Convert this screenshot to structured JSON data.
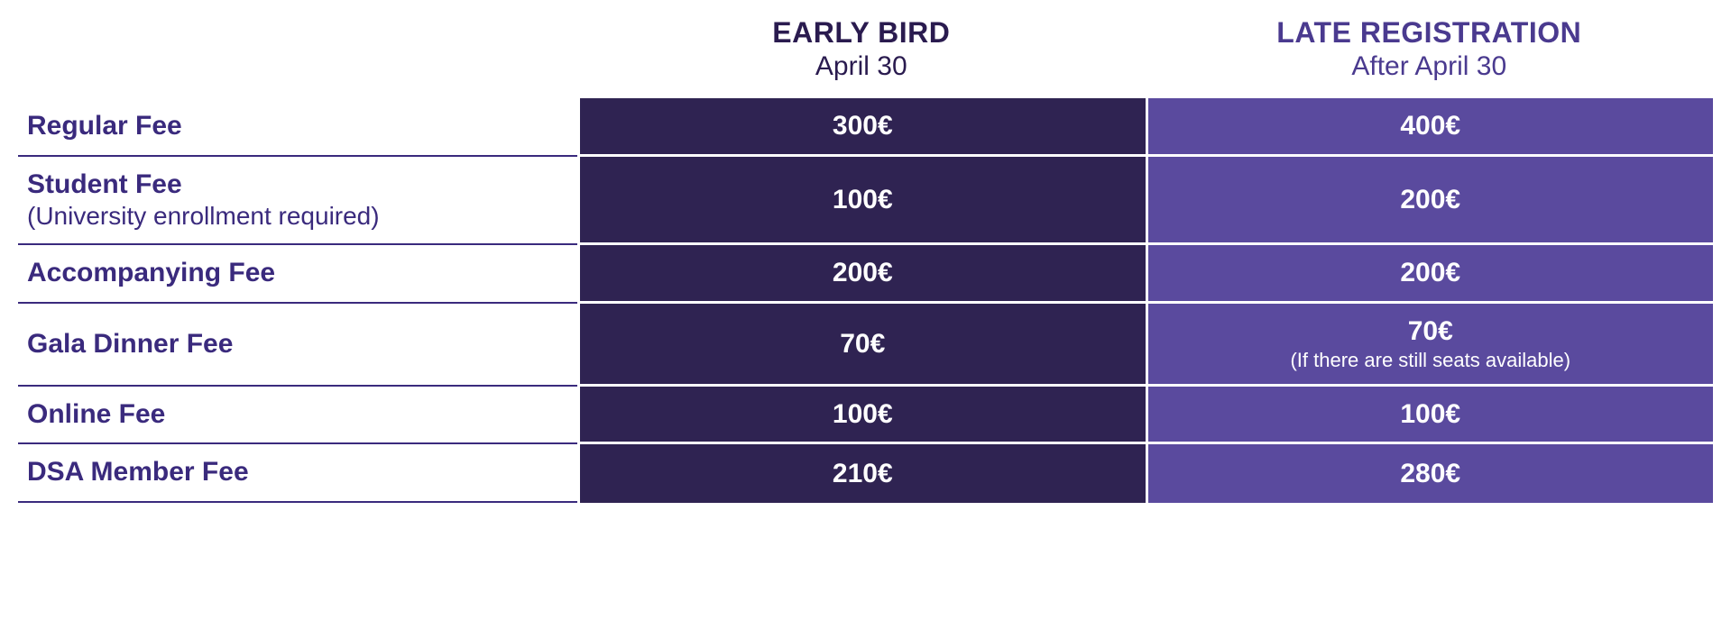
{
  "colors": {
    "label_text": "#3a2a7d",
    "label_border": "#3a2a7d",
    "early_header_text": "#2a1b4f",
    "late_header_text": "#4a3a8f",
    "early_bg": "#2f2352",
    "late_bg": "#5a4a9e",
    "price_text": "#ffffff",
    "row_gap": "#ffffff"
  },
  "type": "table",
  "headers": {
    "blank": "",
    "early": {
      "title": "EARLY BIRD",
      "subtitle": "April 30"
    },
    "late": {
      "title": "LATE REGISTRATION",
      "subtitle": "After April 30"
    }
  },
  "rows": [
    {
      "label": "Regular Fee",
      "sublabel": "",
      "early": "300€",
      "early_sub": "",
      "late": "400€",
      "late_sub": ""
    },
    {
      "label": "Student Fee",
      "sublabel": "(University enrollment required)",
      "early": "100€",
      "early_sub": "",
      "late": "200€",
      "late_sub": ""
    },
    {
      "label": "Accompanying Fee",
      "sublabel": "",
      "early": "200€",
      "early_sub": "",
      "late": "200€",
      "late_sub": ""
    },
    {
      "label": "Gala Dinner Fee",
      "sublabel": "",
      "early": "70€",
      "early_sub": "",
      "late": "70€",
      "late_sub": "(If there are still seats available)"
    },
    {
      "label": "Online Fee",
      "sublabel": "",
      "early": "100€",
      "early_sub": "",
      "late": "100€",
      "late_sub": ""
    },
    {
      "label": "DSA Member Fee",
      "sublabel": "",
      "early": "210€",
      "early_sub": "",
      "late": "280€",
      "late_sub": ""
    }
  ],
  "fonts": {
    "header_title_size": 32,
    "header_sub_size": 30,
    "label_size": 30,
    "label_sub_size": 28,
    "price_size": 30,
    "price_sub_size": 22
  }
}
